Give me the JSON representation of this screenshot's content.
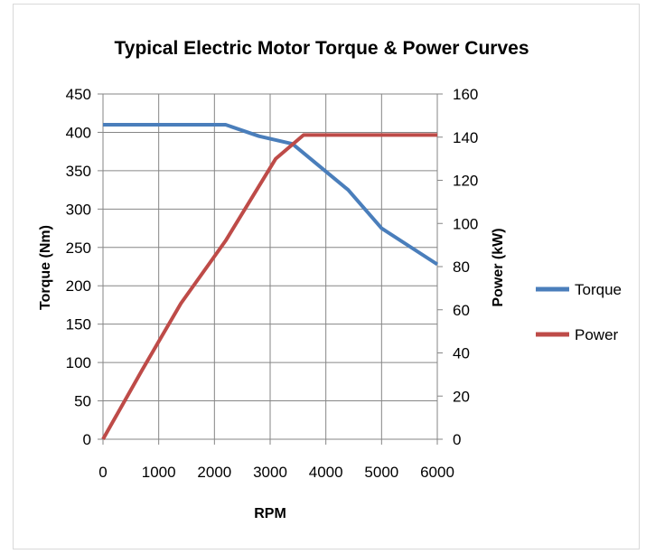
{
  "chart_data": {
    "type": "line",
    "title": "Typical Electric Motor Torque & Power Curves",
    "xlabel": "RPM",
    "ylabel_left": "Torque (Nm)",
    "ylabel_right": "Power (kW)",
    "xlim": [
      0,
      6000
    ],
    "ylim_left": [
      0,
      450
    ],
    "ylim_right": [
      0,
      160
    ],
    "x_ticks": [
      "0",
      "1000",
      "2000",
      "3000",
      "4000",
      "5000",
      "6000"
    ],
    "y_ticks_left": [
      "0",
      "50",
      "100",
      "150",
      "200",
      "250",
      "300",
      "350",
      "400",
      "450"
    ],
    "y_ticks_right": [
      "0",
      "20",
      "40",
      "60",
      "80",
      "100",
      "120",
      "140",
      "160"
    ],
    "grid": true,
    "legend_position": "right",
    "series": [
      {
        "name": "Torque",
        "axis": "left",
        "color": "#4a7ebb",
        "x": [
          0,
          2200,
          2800,
          3400,
          4400,
          5000,
          6000
        ],
        "y": [
          410,
          410,
          395,
          385,
          325,
          275,
          228
        ]
      },
      {
        "name": "Power",
        "axis": "right",
        "color": "#be4b48",
        "x": [
          0,
          700,
          1400,
          2200,
          3100,
          3600,
          6000
        ],
        "y": [
          0,
          32,
          63,
          92,
          130,
          141,
          141
        ]
      }
    ]
  }
}
